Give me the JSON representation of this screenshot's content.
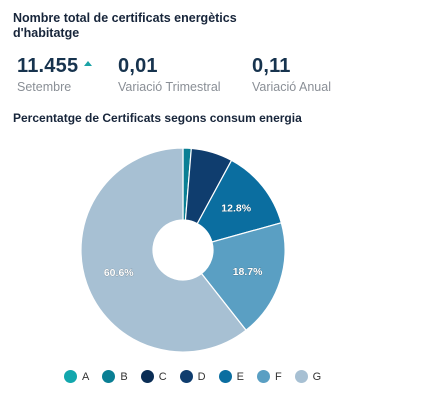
{
  "header": {
    "title": "Nombre total de certificats energètics d'habitatge"
  },
  "kpis": [
    {
      "value": "11.455",
      "label": "Setembre",
      "trend": "up",
      "trend_color": "#1aa3a6"
    },
    {
      "value": "0,01",
      "label": "Variació Trimestral"
    },
    {
      "value": "0,11",
      "label": "Variació Anual"
    }
  ],
  "chart_data": {
    "type": "pie",
    "title": "Percentatge de Certificats segons consum energia",
    "donut": true,
    "legend_position": "bottom",
    "categories": [
      "A",
      "B",
      "C",
      "D",
      "E",
      "F",
      "G"
    ],
    "values": [
      0.0,
      1.3,
      0.0,
      6.6,
      12.8,
      18.7,
      60.6
    ],
    "data_labels": [
      "",
      "",
      "",
      "",
      "12.8%",
      "18.7%",
      "60.6%"
    ],
    "colors": [
      "#12a7ad",
      "#0a7f94",
      "#0a2d55",
      "#0f3d6e",
      "#0b6ea0",
      "#5a9fc3",
      "#a7c0d3"
    ]
  }
}
